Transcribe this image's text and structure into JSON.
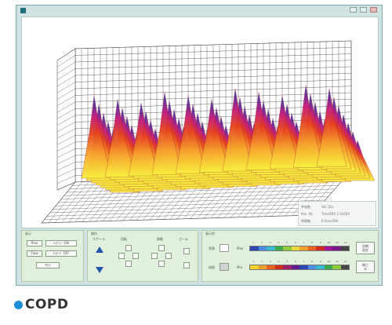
{
  "window": {
    "title": ""
  },
  "info_box": {
    "rows": [
      {
        "key": "呼吸数",
        "value": "Vol. Div."
      },
      {
        "key": "Res. Ns",
        "value": "Time/DIV 1.0s/DIV"
      },
      {
        "key": "時間軸",
        "value": "0.5sec/DIV"
      }
    ]
  },
  "panel_display": {
    "title": "表示",
    "buttons": [
      "Pres",
      "ﾒｯｾｰｼﾞ ON",
      "Flow",
      "ﾒｯｾｰｼﾞ OFF",
      "ﾘｾｯﾄ"
    ]
  },
  "panel_operation": {
    "title": "操作",
    "labels": [
      "スケール",
      "回転",
      "移動",
      "ズーム"
    ]
  },
  "panel_color": {
    "title": "表示色",
    "row1_label": "背景",
    "row2_label": "描画",
    "bar1_label": "Max",
    "bar2_label": "Min",
    "ticks1": [
      "1",
      "2",
      "3",
      "4",
      "5",
      "6",
      "7",
      "8",
      "9",
      "10",
      "11",
      "12"
    ],
    "ticks2": [
      "1",
      "2",
      "3",
      "4",
      "5",
      "6",
      "7",
      "8",
      "9",
      "10",
      "11",
      "12"
    ],
    "btn_apply": "初期\n設定",
    "btn_close": "閉じ\nる"
  },
  "colors": {
    "bar1": [
      "#2a48b0",
      "#4b8ee0",
      "#38b8c8",
      "#3caa48",
      "#8ccb3a",
      "#e6d93a",
      "#f2a02c",
      "#e8621e",
      "#d22a1c",
      "#a0149a",
      "#7a1a8a",
      "#444444"
    ],
    "bar2": [
      "#f5d22e",
      "#f2a02c",
      "#e8621e",
      "#d22a1c",
      "#a01f6a",
      "#5e1d8a",
      "#2a48b0",
      "#4b8ee0",
      "#38b8c8",
      "#3caa48",
      "#8ccb3a",
      "#444444"
    ],
    "accent": "#1a8fd6"
  },
  "caption": {
    "text": "COPD"
  }
}
